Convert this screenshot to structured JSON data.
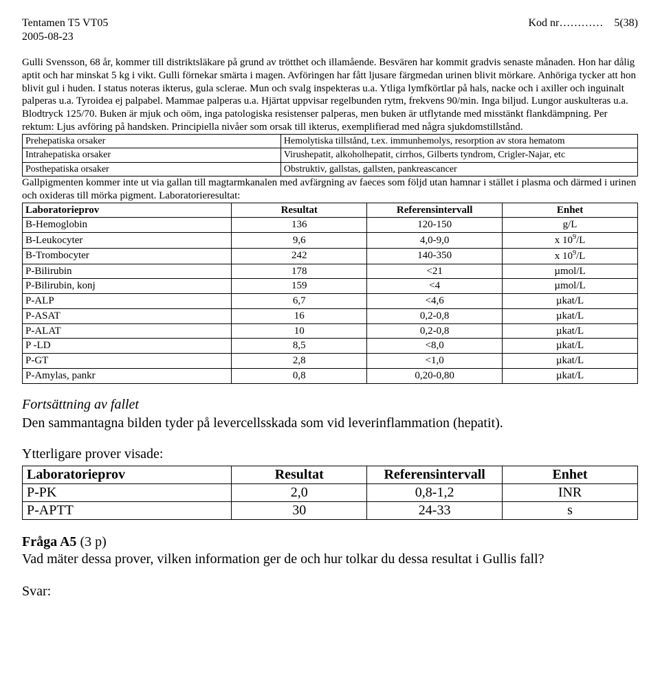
{
  "header": {
    "left": "Tentamen T5 VT05",
    "rightPrefix": "Kod nr",
    "rightDots": "…………",
    "pageInfo": "5(38)",
    "date": "2005-08-23"
  },
  "body1": "Gulli Svensson, 68 år, kommer till distriktsläkare på grund av trötthet och illamående. Besvären har kommit gradvis senaste månaden. Hon har dålig aptit och har minskat 5 kg i vikt. Gulli förnekar smärta i magen. Avföringen har fått ljusare färgmedan urinen blivit mörkare. Anhöriga tycker att hon blivit gul i huden. I status noteras ikterus, gula sclerae. Mun och svalg inspekteras u.a. Ytliga lymfkörtlar på hals, nacke och i axiller och inguinalt palperas u.a. Tyroidea ej palpabel. Mammae palperas u.a. Hjärtat uppvisar regelbunden rytm, frekvens 90/min. Inga biljud. Lungor auskulteras u.a. Blodtryck 125/70. Buken är mjuk och oöm, inga patologiska resistenser palperas, men buken är utflytande med misstänkt flankdämpning. Per rektum: Ljus avföring på handsken. Principiella nivåer som orsak till ikterus, exemplifierad med några sjukdomstillstånd.",
  "causes": [
    [
      "Prehepatiska orsaker",
      "Hemolytiska tillstånd, t.ex. immunhemolys, resorption av stora hematom"
    ],
    [
      "Intrahepatiska orsaker",
      "Virushepatit, alkoholhepatit, cirrhos, Gilberts tyndrom, Crigler-Najar, etc"
    ],
    [
      "Posthepatiska orsaker",
      "Obstruktiv, gallstas, gallsten, pankreascancer"
    ]
  ],
  "body2": "Gallpigmenten kommer inte ut via gallan till magtarmkanalen med avfärgning av faeces som följd utan hamnar i stället i plasma och därmed i urinen och oxideras till mörka pigment. Laboratorieresultat:",
  "labHeaders": [
    "Laboratorieprov",
    "Resultat",
    "Referensintervall",
    "Enhet"
  ],
  "labRows": [
    [
      "B-Hemoglobin",
      "136",
      "120-150",
      "g/L"
    ],
    [
      "B-Leukocyter",
      "9,6",
      "4,0-9,0",
      "x 10⁹/L"
    ],
    [
      "B-Trombocyter",
      "242",
      "140-350",
      "x 10⁹/L"
    ],
    [
      "P-Bilirubin",
      "178",
      "<21",
      "µmol/L"
    ],
    [
      "P-Bilirubin, konj",
      "159",
      "<4",
      "µmol/L"
    ],
    [
      "P-ALP",
      "6,7",
      "<4,6",
      "µkat/L"
    ],
    [
      "P-ASAT",
      "16",
      "0,2-0,8",
      "µkat/L"
    ],
    [
      "P-ALAT",
      "10",
      "0,2-0,8",
      "µkat/L"
    ],
    [
      "P -LD",
      "8,5",
      "<8,0",
      "µkat/L"
    ],
    [
      "P-GT",
      "2,8",
      "<1,0",
      "µkat/L"
    ],
    [
      "P-Amylas, pankr",
      "0,8",
      "0,20-0,80",
      "µkat/L"
    ]
  ],
  "continuation": {
    "heading": "Fortsättning av fallet",
    "text": "Den sammantagna bilden tyder på levercellsskada som vid leverinflammation (hepatit)."
  },
  "further": {
    "heading": "Ytterligare prover visade:",
    "headers": [
      "Laboratorieprov",
      "Resultat",
      "Referensintervall",
      "Enhet"
    ],
    "rows": [
      [
        "P-PK",
        "2,0",
        "0,8-1,2",
        "INR"
      ],
      [
        "P-APTT",
        "30",
        "24-33",
        "s"
      ]
    ]
  },
  "question": {
    "label": "Fråga A5",
    "points": "(3 p)",
    "text": "Vad mäter dessa prover, vilken information ger de och hur tolkar du dessa resultat i Gullis fall?"
  },
  "svarLabel": "Svar:"
}
